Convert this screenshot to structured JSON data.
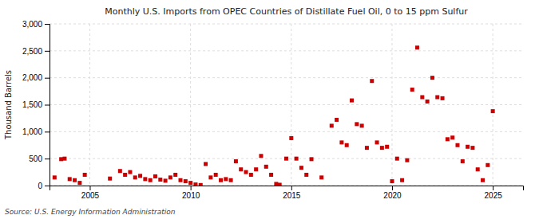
{
  "chart_data": {
    "type": "scatter",
    "title": "Monthly U.S. Imports from OPEC Countries of Distillate Fuel Oil, 0 to 15 ppm Sulfur",
    "y_label": "Thousand Barrels",
    "annotations": [
      "Source: U.S. Energy Information Administration"
    ],
    "color": "#cc0000",
    "marker": "square",
    "grid": true,
    "xlim": [
      2003.0,
      2026.5
    ],
    "xticks": [
      2005,
      2010,
      2015,
      2020,
      2025
    ],
    "ylim": [
      0,
      3000
    ],
    "yticks": [
      0,
      500,
      {
        "value": 1000,
        "label": "1,000"
      },
      {
        "value": 1500,
        "label": "1,500"
      },
      {
        "value": 2000,
        "label": "2,000"
      },
      {
        "value": 2500,
        "label": "2,500"
      },
      {
        "value": 3000,
        "label": "3,000"
      }
    ],
    "x": [
      2003.25,
      2003.58,
      2003.75,
      2004.0,
      2004.25,
      2004.5,
      2004.75,
      2006.0,
      2006.5,
      2006.75,
      2007.0,
      2007.25,
      2007.5,
      2007.75,
      2008.0,
      2008.25,
      2008.5,
      2008.75,
      2009.0,
      2009.25,
      2009.5,
      2009.75,
      2010.0,
      2010.25,
      2010.5,
      2010.75,
      2011.0,
      2011.25,
      2011.5,
      2011.75,
      2012.0,
      2012.25,
      2012.5,
      2012.75,
      2013.0,
      2013.25,
      2013.5,
      2013.75,
      2014.0,
      2014.25,
      2014.42,
      2014.75,
      2015.0,
      2015.25,
      2015.5,
      2015.75,
      2016.0,
      2016.5,
      2017.0,
      2017.25,
      2017.5,
      2017.75,
      2018.0,
      2018.25,
      2018.5,
      2018.75,
      2019.0,
      2019.25,
      2019.5,
      2019.75,
      2020.0,
      2020.25,
      2020.5,
      2020.75,
      2021.0,
      2021.25,
      2021.5,
      2021.75,
      2022.0,
      2022.25,
      2022.5,
      2022.75,
      2023.0,
      2023.25,
      2023.5,
      2023.75,
      2024.0,
      2024.25,
      2024.5,
      2024.75,
      2025.0
    ],
    "values": [
      150,
      490,
      500,
      120,
      100,
      50,
      200,
      130,
      270,
      200,
      250,
      150,
      180,
      120,
      100,
      170,
      110,
      90,
      150,
      200,
      100,
      80,
      50,
      20,
      10,
      400,
      150,
      200,
      100,
      120,
      100,
      450,
      300,
      250,
      200,
      300,
      550,
      350,
      200,
      30,
      15,
      500,
      880,
      500,
      330,
      200,
      490,
      150,
      1110,
      1220,
      800,
      750,
      1580,
      1140,
      1110,
      700,
      1940,
      800,
      700,
      720,
      80,
      500,
      100,
      470,
      1780,
      2560,
      1640,
      1560,
      2000,
      1640,
      1620,
      860,
      890,
      750,
      450,
      720,
      700,
      300,
      100,
      380,
      1380
    ]
  }
}
